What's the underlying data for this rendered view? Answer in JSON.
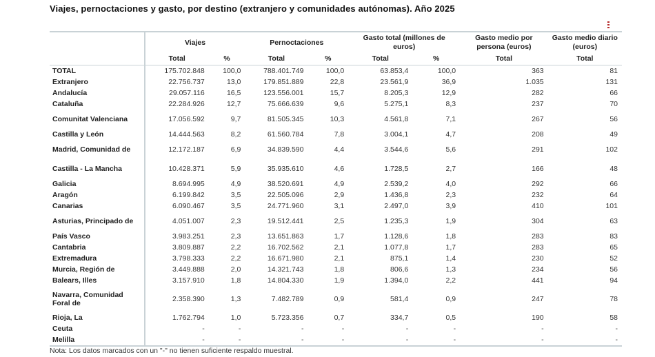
{
  "title": "Viajes, pernoctaciones y gasto, por destino (extranjero y comunidades autónomas). Año 2025",
  "menu_icon": "vertical-dots-menu-icon",
  "accent_color": "#b52a2a",
  "headers": {
    "groups": [
      "Viajes",
      "Pernoctaciones",
      "Gasto total (millones de euros)",
      "Gasto medio por persona (euros)",
      "Gasto medio diario (euros)"
    ],
    "sub": [
      "Total",
      "%",
      "Total",
      "%",
      "Total",
      "%",
      "Total",
      "Total"
    ]
  },
  "rows": [
    {
      "label": "TOTAL",
      "lines": 1,
      "values": [
        "175.702.848",
        "100,0",
        "788.401.749",
        "100,0",
        "63.853,4",
        "100,0",
        "363",
        "81"
      ]
    },
    {
      "label": "Extranjero",
      "lines": 1,
      "values": [
        "22.756.737",
        "13,0",
        "179.851.889",
        "22,8",
        "23.561,9",
        "36,9",
        "1.035",
        "131"
      ]
    },
    {
      "label": "Andalucía",
      "lines": 1,
      "values": [
        "29.057.116",
        "16,5",
        "123.556.001",
        "15,7",
        "8.205,3",
        "12,9",
        "282",
        "66"
      ]
    },
    {
      "label": "Cataluña",
      "lines": 1,
      "values": [
        "22.284.926",
        "12,7",
        "75.666.639",
        "9,6",
        "5.275,1",
        "8,3",
        "237",
        "70"
      ]
    },
    {
      "label": "Comunitat Valenciana",
      "lines": 2,
      "values": [
        "17.056.592",
        "9,7",
        "81.505.345",
        "10,3",
        "4.561,8",
        "7,1",
        "267",
        "56"
      ]
    },
    {
      "label": "Castilla y León",
      "lines": 1,
      "values": [
        "14.444.563",
        "8,2",
        "61.560.784",
        "7,8",
        "3.004,1",
        "4,7",
        "208",
        "49"
      ]
    },
    {
      "label": "Madrid, Comunidad de",
      "lines": 2,
      "values": [
        "12.172.187",
        "6,9",
        "34.839.590",
        "4,4",
        "3.544,6",
        "5,6",
        "291",
        "102"
      ]
    },
    {
      "label": "Castilla - La Mancha",
      "lines": 2,
      "values": [
        "10.428.371",
        "5,9",
        "35.935.610",
        "4,6",
        "1.728,5",
        "2,7",
        "166",
        "48"
      ]
    },
    {
      "label": "Galicia",
      "lines": 1,
      "values": [
        "8.694.995",
        "4,9",
        "38.520.691",
        "4,9",
        "2.539,2",
        "4,0",
        "292",
        "66"
      ]
    },
    {
      "label": "Aragón",
      "lines": 1,
      "values": [
        "6.199.842",
        "3,5",
        "22.505.096",
        "2,9",
        "1.436,8",
        "2,3",
        "232",
        "64"
      ]
    },
    {
      "label": "Canarias",
      "lines": 1,
      "values": [
        "6.090.467",
        "3,5",
        "24.771.960",
        "3,1",
        "2.497,0",
        "3,9",
        "410",
        "101"
      ]
    },
    {
      "label": "Asturias, Principado de",
      "lines": 2,
      "values": [
        "4.051.007",
        "2,3",
        "19.512.441",
        "2,5",
        "1.235,3",
        "1,9",
        "304",
        "63"
      ]
    },
    {
      "label": "País Vasco",
      "lines": 1,
      "values": [
        "3.983.251",
        "2,3",
        "13.651.863",
        "1,7",
        "1.128,6",
        "1,8",
        "283",
        "83"
      ]
    },
    {
      "label": "Cantabria",
      "lines": 1,
      "values": [
        "3.809.887",
        "2,2",
        "16.702.562",
        "2,1",
        "1.077,8",
        "1,7",
        "283",
        "65"
      ]
    },
    {
      "label": "Extremadura",
      "lines": 1,
      "values": [
        "3.798.333",
        "2,2",
        "16.671.980",
        "2,1",
        "875,1",
        "1,4",
        "230",
        "52"
      ]
    },
    {
      "label": "Murcia, Región de",
      "lines": 1,
      "values": [
        "3.449.888",
        "2,0",
        "14.321.743",
        "1,8",
        "806,6",
        "1,3",
        "234",
        "56"
      ]
    },
    {
      "label": "Balears, Illes",
      "lines": 1,
      "values": [
        "3.157.910",
        "1,8",
        "14.804.330",
        "1,9",
        "1.394,0",
        "2,2",
        "441",
        "94"
      ]
    },
    {
      "label": "Navarra, Comunidad Foral de",
      "lines": 3,
      "values": [
        "2.358.390",
        "1,3",
        "7.482.789",
        "0,9",
        "581,4",
        "0,9",
        "247",
        "78"
      ]
    },
    {
      "label": "Rioja, La",
      "lines": 1,
      "values": [
        "1.762.794",
        "1,0",
        "5.723.356",
        "0,7",
        "334,7",
        "0,5",
        "190",
        "58"
      ]
    },
    {
      "label": "Ceuta",
      "lines": 1,
      "values": [
        "-",
        "-",
        "-",
        "-",
        "-",
        "-",
        "-",
        "-"
      ]
    },
    {
      "label": "Melilla",
      "lines": 1,
      "values": [
        "-",
        "-",
        "-",
        "-",
        "-",
        "-",
        "-",
        "-"
      ]
    }
  ],
  "note": "Nota: Los datos marcados con un \"-\" no tienen suficiente respaldo muestral."
}
